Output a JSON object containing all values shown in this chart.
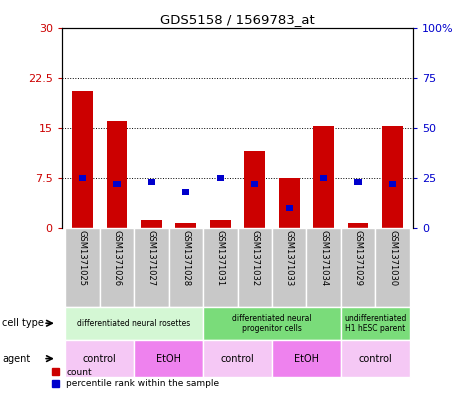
{
  "title": "GDS5158 / 1569783_at",
  "samples": [
    "GSM1371025",
    "GSM1371026",
    "GSM1371027",
    "GSM1371028",
    "GSM1371031",
    "GSM1371032",
    "GSM1371033",
    "GSM1371034",
    "GSM1371029",
    "GSM1371030"
  ],
  "counts": [
    20.5,
    16.0,
    1.2,
    0.8,
    1.2,
    11.5,
    7.5,
    15.2,
    0.8,
    15.2
  ],
  "percentiles": [
    25.0,
    22.0,
    23.0,
    18.0,
    25.0,
    22.0,
    10.0,
    25.0,
    23.0,
    22.0
  ],
  "ylim_left": [
    0,
    30
  ],
  "ylim_right": [
    0,
    100
  ],
  "yticks_left": [
    0,
    7.5,
    15,
    22.5,
    30
  ],
  "yticks_right": [
    0,
    25,
    50,
    75,
    100
  ],
  "ytick_labels_left": [
    "0",
    "7.5",
    "15",
    "22.5",
    "30"
  ],
  "ytick_labels_right": [
    "0",
    "25",
    "50",
    "75",
    "100%"
  ],
  "cell_type_groups": [
    {
      "label": "differentiated neural rosettes",
      "start": 0,
      "end": 4,
      "color": "#d4f7d4"
    },
    {
      "label": "differentiated neural\nprogenitor cells",
      "start": 4,
      "end": 8,
      "color": "#7adc7a"
    },
    {
      "label": "undifferentiated\nH1 hESC parent",
      "start": 8,
      "end": 10,
      "color": "#7adc7a"
    }
  ],
  "agent_groups": [
    {
      "label": "control",
      "start": 0,
      "end": 2,
      "color": "#f5c8f5"
    },
    {
      "label": "EtOH",
      "start": 2,
      "end": 4,
      "color": "#ee82ee"
    },
    {
      "label": "control",
      "start": 4,
      "end": 6,
      "color": "#f5c8f5"
    },
    {
      "label": "EtOH",
      "start": 6,
      "end": 8,
      "color": "#ee82ee"
    },
    {
      "label": "control",
      "start": 8,
      "end": 10,
      "color": "#f5c8f5"
    }
  ],
  "bar_color_red": "#cc0000",
  "bar_color_blue": "#0000cc",
  "sample_bg": "#c8c8c8",
  "plot_bg": "#ffffff",
  "left_tick_color": "#cc0000",
  "right_tick_color": "#0000cc"
}
